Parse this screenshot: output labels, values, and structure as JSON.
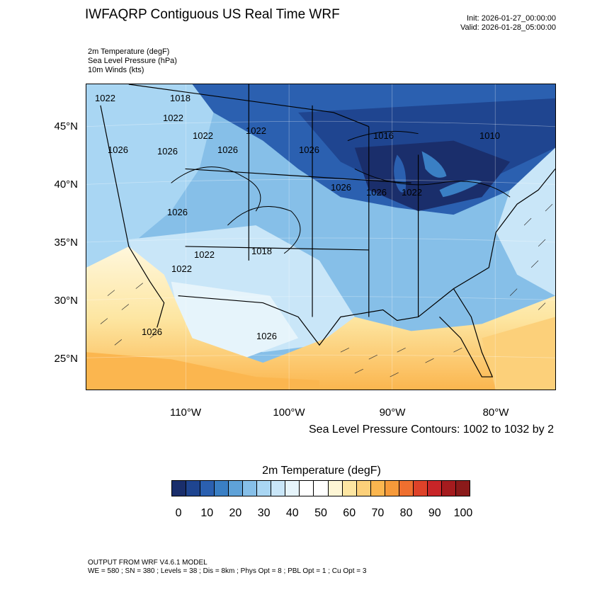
{
  "header": {
    "title": "IWFAQRP Contiguous US Real Time WRF",
    "init": "Init: 2026-01-27_00:00:00",
    "valid": "Valid: 2026-01-28_05:00:00"
  },
  "fields": [
    "2m Temperature   (degF)",
    "Sea Level Pressure   (hPa)",
    "10m Winds   (kts)"
  ],
  "map": {
    "lat_labels": [
      "45°N",
      "40°N",
      "35°N",
      "30°N",
      "25°N"
    ],
    "lon_labels": [
      "110°W",
      "100°W",
      "90°W",
      "80°W"
    ],
    "contour_labels": [
      "1022",
      "1018",
      "1022",
      "1022",
      "1022",
      "1026",
      "1026",
      "1026",
      "1026",
      "1026",
      "1022",
      "1022",
      "1026",
      "1018",
      "1016",
      "1010",
      "1026",
      "1026",
      "1026",
      "1022"
    ],
    "contour_note": "Sea Level Pressure Contours: 1002 to 1032 by 2"
  },
  "colorbar": {
    "title": "2m Temperature  (degF)",
    "colors": [
      "#1a2e6b",
      "#1f4590",
      "#2b60b0",
      "#3a7fc4",
      "#5fa2d8",
      "#86bfe8",
      "#a9d6f3",
      "#c9e6f8",
      "#e6f4fb",
      "#ffffff",
      "#ffffff",
      "#fef6d5",
      "#fde6a2",
      "#fcd07a",
      "#fbb64f",
      "#f69a3a",
      "#ef6f2f",
      "#de4229",
      "#c82528",
      "#a51b1e",
      "#8b1a1a"
    ],
    "ticks": [
      "0",
      "10",
      "20",
      "30",
      "40",
      "50",
      "60",
      "70",
      "80",
      "90",
      "100"
    ]
  },
  "footer": {
    "line1": "OUTPUT FROM WRF V4.6.1 MODEL",
    "line2": "WE = 580 ; SN = 380 ; Levels = 38 ; Dis = 8km ; Phys Opt = 8 ; PBL Opt = 1 ; Cu Opt = 3"
  }
}
